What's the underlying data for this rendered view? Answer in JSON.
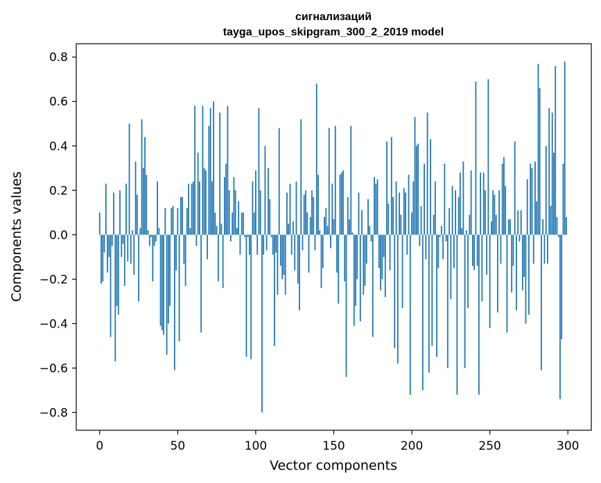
{
  "chart_data": {
    "type": "bar",
    "title": [
      "сигнализаций",
      "tayga_upos_skipgram_300_2_2019 model"
    ],
    "xlabel": "Vector components",
    "ylabel": "Components values",
    "xlim": [
      -15,
      315
    ],
    "ylim": [
      -0.88,
      0.86
    ],
    "xticks": [
      0,
      50,
      100,
      150,
      200,
      250,
      300
    ],
    "xtick_labels": [
      "0",
      "50",
      "100",
      "150",
      "200",
      "250",
      "300"
    ],
    "yticks": [
      -0.8,
      -0.6,
      -0.4,
      -0.2,
      0.0,
      0.2,
      0.4,
      0.6,
      0.8
    ],
    "ytick_labels": [
      "−0.8",
      "−0.6",
      "−0.4",
      "−0.2",
      "0.0",
      "0.2",
      "0.4",
      "0.6",
      "0.8"
    ],
    "grid": false,
    "bar_color": "#1f77b4",
    "x": [
      0,
      1,
      2,
      3,
      4,
      5,
      6,
      7,
      8,
      9,
      10,
      11,
      12,
      13,
      14,
      15,
      16,
      17,
      18,
      19,
      20,
      21,
      22,
      23,
      24,
      25,
      26,
      27,
      28,
      29,
      30,
      31,
      32,
      33,
      34,
      35,
      36,
      37,
      38,
      39,
      40,
      41,
      42,
      43,
      44,
      45,
      46,
      47,
      48,
      49,
      50,
      51,
      52,
      53,
      54,
      55,
      56,
      57,
      58,
      59,
      60,
      61,
      62,
      63,
      64,
      65,
      66,
      67,
      68,
      69,
      70,
      71,
      72,
      73,
      74,
      75,
      76,
      77,
      78,
      79,
      80,
      81,
      82,
      83,
      84,
      85,
      86,
      87,
      88,
      89,
      90,
      91,
      92,
      93,
      94,
      95,
      96,
      97,
      98,
      99,
      100,
      101,
      102,
      103,
      104,
      105,
      106,
      107,
      108,
      109,
      110,
      111,
      112,
      113,
      114,
      115,
      116,
      117,
      118,
      119,
      120,
      121,
      122,
      123,
      124,
      125,
      126,
      127,
      128,
      129,
      130,
      131,
      132,
      133,
      134,
      135,
      136,
      137,
      138,
      139,
      140,
      141,
      142,
      143,
      144,
      145,
      146,
      147,
      148,
      149,
      150,
      151,
      152,
      153,
      154,
      155,
      156,
      157,
      158,
      159,
      160,
      161,
      162,
      163,
      164,
      165,
      166,
      167,
      168,
      169,
      170,
      171,
      172,
      173,
      174,
      175,
      176,
      177,
      178,
      179,
      180,
      181,
      182,
      183,
      184,
      185,
      186,
      187,
      188,
      189,
      190,
      191,
      192,
      193,
      194,
      195,
      196,
      197,
      198,
      199,
      200,
      201,
      202,
      203,
      204,
      205,
      206,
      207,
      208,
      209,
      210,
      211,
      212,
      213,
      214,
      215,
      216,
      217,
      218,
      219,
      220,
      221,
      222,
      223,
      224,
      225,
      226,
      227,
      228,
      229,
      230,
      231,
      232,
      233,
      234,
      235,
      236,
      237,
      238,
      239,
      240,
      241,
      242,
      243,
      244,
      245,
      246,
      247,
      248,
      249,
      250,
      251,
      252,
      253,
      254,
      255,
      256,
      257,
      258,
      259,
      260,
      261,
      262,
      263,
      264,
      265,
      266,
      267,
      268,
      269,
      270,
      271,
      272,
      273,
      274,
      275,
      276,
      277,
      278,
      279,
      280,
      281,
      282,
      283,
      284,
      285,
      286,
      287,
      288,
      289,
      290,
      291,
      292,
      293,
      294,
      295,
      296,
      297,
      298,
      299
    ],
    "values": [
      0.1,
      -0.22,
      -0.21,
      -0.08,
      0.23,
      -0.17,
      -0.1,
      -0.46,
      -0.05,
      0.19,
      -0.57,
      -0.32,
      -0.36,
      0.2,
      -0.1,
      -0.04,
      -0.23,
      0.23,
      -0.12,
      0.5,
      -0.13,
      0.02,
      -0.18,
      0.33,
      0.18,
      -0.3,
      0.03,
      0.52,
      0.3,
      0.44,
      0.27,
      0.02,
      -0.05,
      -0.01,
      -0.21,
      -0.05,
      -0.03,
      0.24,
      0.03,
      -0.41,
      -0.43,
      -0.45,
      0.12,
      -0.54,
      -0.4,
      -0.32,
      0.12,
      0.13,
      -0.61,
      -0.16,
      0.12,
      -0.48,
      0.17,
      0.17,
      -0.13,
      -0.23,
      0.12,
      0.23,
      0.03,
      0.23,
      0.24,
      0.58,
      -0.05,
      0.37,
      0.24,
      -0.44,
      0.58,
      0.3,
      0.29,
      -0.11,
      0.49,
      0.57,
      0.24,
      0.6,
      0.1,
      0.04,
      -0.21,
      0.55,
      0.05,
      -0.24,
      0.26,
      0.32,
      0.58,
      0.2,
      -0.03,
      0.1,
      0.26,
      0.2,
      0.03,
      0.15,
      -0.09,
      0.1,
      0.1,
      -0.01,
      -0.55,
      -0.01,
      -0.09,
      -0.56,
      0.24,
      0.1,
      0.29,
      -0.09,
      0.57,
      0.2,
      -0.8,
      -0.09,
      0.4,
      -0.07,
      0.3,
      0.16,
      -0.01,
      -0.09,
      -0.5,
      -0.08,
      -0.27,
      0.48,
      -0.14,
      -0.2,
      -0.18,
      -0.27,
      0.19,
      0.05,
      0.23,
      -0.09,
      0.06,
      -0.16,
      0.24,
      -0.22,
      -0.34,
      0.52,
      -0.07,
      0.18,
      0.2,
      0.1,
      -0.17,
      0.08,
      0.2,
      0.17,
      -0.07,
      0.68,
      0.27,
      0.02,
      -0.24,
      -0.15,
      0.08,
      0.12,
      0.04,
      0.48,
      -0.06,
      0.23,
      0.07,
      0.49,
      -0.17,
      -0.31,
      0.27,
      0.28,
      0.29,
      -0.21,
      -0.64,
      0.17,
      0.07,
      0.49,
      0.01,
      -0.41,
      -0.32,
      -0.2,
      0.19,
      -0.39,
      0.11,
      -0.27,
      -0.23,
      -0.13,
      0.16,
      0.04,
      -0.03,
      -0.46,
      0.26,
      0.23,
      0.25,
      -0.15,
      -0.25,
      -0.2,
      -0.1,
      -0.28,
      0.42,
      0.14,
      -0.16,
      0.44,
      0.17,
      -0.51,
      0.24,
      -0.58,
      0.19,
      0.09,
      -0.33,
      0.21,
      0.19,
      -0.09,
      0.27,
      -0.72,
      0.1,
      0.24,
      0.53,
      0.4,
      0.41,
      -0.05,
      0.13,
      -0.7,
      0.32,
      -0.11,
      0.55,
      -0.62,
      0.43,
      -0.5,
      0.09,
      0.24,
      -0.55,
      -0.15,
      -0.01,
      0.04,
      -0.11,
      0.32,
      -0.03,
      -0.6,
      0.12,
      -0.29,
      0.22,
      -0.15,
      0.2,
      -0.72,
      0.17,
      0.28,
      0.03,
      0.33,
      -0.6,
      0.02,
      -0.33,
      0.09,
      0.29,
      -0.14,
      -0.16,
      0.69,
      -0.14,
      -0.72,
      0.28,
      -0.3,
      0.28,
      0.2,
      -0.18,
      0.7,
      -0.42,
      0.06,
      0.2,
      0.18,
      0.09,
      -0.35,
      0.2,
      -0.13,
      0.32,
      0.35,
      0.22,
      -0.44,
      0.07,
      0.07,
      -0.26,
      -0.14,
      0.42,
      -0.34,
      0.11,
      -0.03,
      0.11,
      -0.25,
      -0.19,
      -0.4,
      0.25,
      -0.36,
      0.32,
      0.3,
      -0.13,
      0.33,
      0.15,
      0.77,
      0.66,
      -0.61,
      0.07,
      -0.13,
      0.4,
      -0.13,
      0.57,
      0.13,
      0.55,
      0.37,
      0.76,
      0.08,
      -0.01,
      -0.74,
      -0.47,
      0.32,
      0.78,
      0.08
    ]
  }
}
